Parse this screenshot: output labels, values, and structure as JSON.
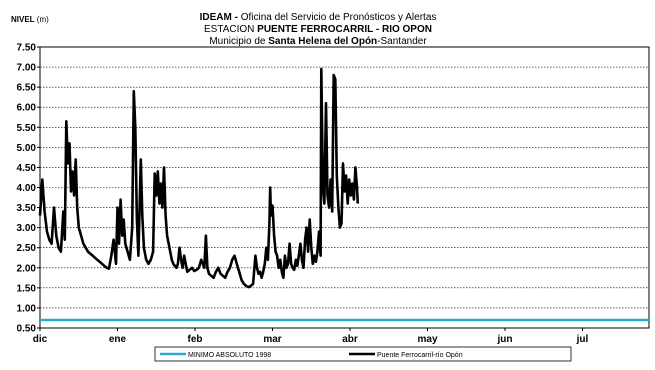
{
  "chart_data": {
    "type": "line",
    "title_line1_bold": "IDEAM -",
    "title_line1_rest": " Oficina del Servicio de Pronósticos y Alertas",
    "title_line2_prefix": "ESTACION ",
    "title_line2_bold": "PUENTE FERROCARRIL - RIO OPON",
    "title_line3_prefix": "Municipio de ",
    "title_line3_bold": "Santa Helena del Opón",
    "title_line3_suffix": "-Santander",
    "ylabel_bold": "NIVEL",
    "ylabel_unit": " (m)",
    "ylim": [
      0.5,
      7.5
    ],
    "y_ticks": [
      "0.50",
      "1.00",
      "1.50",
      "2.00",
      "2.50",
      "3.00",
      "3.50",
      "4.00",
      "4.50",
      "5.00",
      "5.50",
      "6.00",
      "6.50",
      "7.00",
      "7.50"
    ],
    "x_ticks": [
      "dic",
      "ene",
      "feb",
      "mar",
      "abr",
      "may",
      "jun",
      "jul"
    ],
    "grid": true,
    "legend_position": "bottom",
    "series": [
      {
        "name": "MINIMO ABSOLUTO 1998",
        "color": "#2aa9d2",
        "values": [
          [
            0.0,
            0.7
          ],
          [
            7.8,
            0.7
          ]
        ]
      },
      {
        "name": "Puente Ferrocarril-río Opón",
        "color": "#000000",
        "values": [
          [
            0.0,
            3.3
          ],
          [
            0.03,
            4.2
          ],
          [
            0.06,
            3.4
          ],
          [
            0.09,
            2.9
          ],
          [
            0.12,
            2.7
          ],
          [
            0.15,
            2.6
          ],
          [
            0.18,
            3.5
          ],
          [
            0.21,
            2.8
          ],
          [
            0.24,
            2.5
          ],
          [
            0.27,
            2.4
          ],
          [
            0.3,
            3.4
          ],
          [
            0.32,
            2.7
          ],
          [
            0.34,
            5.65
          ],
          [
            0.36,
            4.6
          ],
          [
            0.38,
            5.1
          ],
          [
            0.4,
            3.9
          ],
          [
            0.42,
            4.4
          ],
          [
            0.44,
            3.8
          ],
          [
            0.46,
            4.7
          ],
          [
            0.48,
            3.5
          ],
          [
            0.5,
            3.0
          ],
          [
            0.53,
            2.8
          ],
          [
            0.56,
            2.6
          ],
          [
            0.59,
            2.5
          ],
          [
            0.62,
            2.4
          ],
          [
            0.65,
            2.35
          ],
          [
            0.68,
            2.3
          ],
          [
            0.71,
            2.25
          ],
          [
            0.74,
            2.2
          ],
          [
            0.77,
            2.15
          ],
          [
            0.8,
            2.1
          ],
          [
            0.83,
            2.05
          ],
          [
            0.86,
            2.0
          ],
          [
            0.89,
            1.98
          ],
          [
            0.92,
            2.3
          ],
          [
            0.95,
            2.7
          ],
          [
            0.98,
            2.1
          ],
          [
            1.0,
            3.5
          ],
          [
            1.02,
            2.6
          ],
          [
            1.04,
            3.7
          ],
          [
            1.06,
            2.8
          ],
          [
            1.08,
            3.2
          ],
          [
            1.1,
            2.6
          ],
          [
            1.13,
            2.4
          ],
          [
            1.16,
            2.2
          ],
          [
            1.19,
            3.0
          ],
          [
            1.21,
            6.4
          ],
          [
            1.23,
            5.5
          ],
          [
            1.25,
            3.2
          ],
          [
            1.27,
            2.3
          ],
          [
            1.3,
            4.7
          ],
          [
            1.32,
            3.3
          ],
          [
            1.34,
            2.5
          ],
          [
            1.37,
            2.2
          ],
          [
            1.4,
            2.1
          ],
          [
            1.43,
            2.2
          ],
          [
            1.46,
            2.4
          ],
          [
            1.48,
            4.35
          ],
          [
            1.5,
            3.8
          ],
          [
            1.52,
            4.4
          ],
          [
            1.54,
            3.6
          ],
          [
            1.56,
            4.1
          ],
          [
            1.58,
            3.5
          ],
          [
            1.6,
            4.5
          ],
          [
            1.62,
            3.3
          ],
          [
            1.64,
            2.8
          ],
          [
            1.66,
            2.6
          ],
          [
            1.68,
            2.4
          ],
          [
            1.7,
            2.2
          ],
          [
            1.72,
            2.1
          ],
          [
            1.74,
            2.05
          ],
          [
            1.76,
            2.0
          ],
          [
            1.78,
            2.1
          ],
          [
            1.8,
            2.5
          ],
          [
            1.82,
            2.2
          ],
          [
            1.84,
            2.0
          ],
          [
            1.86,
            2.3
          ],
          [
            1.88,
            2.1
          ],
          [
            1.9,
            1.9
          ],
          [
            1.93,
            1.95
          ],
          [
            1.96,
            2.0
          ],
          [
            1.99,
            1.92
          ],
          [
            2.02,
            1.95
          ],
          [
            2.05,
            2.0
          ],
          [
            2.08,
            2.2
          ],
          [
            2.1,
            2.1
          ],
          [
            2.12,
            2.0
          ],
          [
            2.14,
            2.8
          ],
          [
            2.16,
            2.0
          ],
          [
            2.18,
            1.85
          ],
          [
            2.21,
            1.8
          ],
          [
            2.24,
            1.75
          ],
          [
            2.27,
            1.9
          ],
          [
            2.3,
            2.0
          ],
          [
            2.33,
            1.85
          ],
          [
            2.36,
            1.8
          ],
          [
            2.39,
            1.75
          ],
          [
            2.42,
            1.9
          ],
          [
            2.45,
            2.0
          ],
          [
            2.48,
            2.2
          ],
          [
            2.51,
            2.3
          ],
          [
            2.54,
            2.1
          ],
          [
            2.57,
            1.9
          ],
          [
            2.6,
            1.7
          ],
          [
            2.63,
            1.6
          ],
          [
            2.66,
            1.55
          ],
          [
            2.69,
            1.52
          ],
          [
            2.72,
            1.55
          ],
          [
            2.75,
            1.6
          ],
          [
            2.78,
            2.3
          ],
          [
            2.8,
            2.0
          ],
          [
            2.82,
            1.85
          ],
          [
            2.84,
            1.9
          ],
          [
            2.86,
            1.75
          ],
          [
            2.88,
            1.9
          ],
          [
            2.9,
            2.1
          ],
          [
            2.92,
            2.5
          ],
          [
            2.94,
            2.2
          ],
          [
            2.96,
            3.1
          ],
          [
            2.97,
            4.0
          ],
          [
            2.98,
            3.3
          ],
          [
            3.0,
            3.55
          ],
          [
            3.02,
            2.8
          ],
          [
            3.04,
            2.4
          ],
          [
            3.06,
            2.3
          ],
          [
            3.08,
            2.0
          ],
          [
            3.1,
            2.2
          ],
          [
            3.12,
            1.9
          ],
          [
            3.14,
            1.75
          ],
          [
            3.16,
            2.3
          ],
          [
            3.18,
            2.0
          ],
          [
            3.2,
            2.1
          ],
          [
            3.22,
            2.6
          ],
          [
            3.24,
            2.1
          ],
          [
            3.26,
            2.0
          ],
          [
            3.28,
            1.95
          ],
          [
            3.3,
            2.2
          ],
          [
            3.32,
            2.05
          ],
          [
            3.34,
            2.3
          ],
          [
            3.36,
            2.6
          ],
          [
            3.38,
            2.2
          ],
          [
            3.4,
            2.0
          ],
          [
            3.42,
            2.7
          ],
          [
            3.44,
            3.0
          ],
          [
            3.46,
            2.4
          ],
          [
            3.48,
            3.2
          ],
          [
            3.5,
            2.5
          ],
          [
            3.52,
            2.1
          ],
          [
            3.54,
            2.3
          ],
          [
            3.56,
            2.15
          ],
          [
            3.58,
            2.4
          ],
          [
            3.6,
            2.9
          ],
          [
            3.62,
            2.3
          ],
          [
            3.63,
            6.95
          ],
          [
            3.65,
            4.0
          ],
          [
            3.67,
            3.6
          ],
          [
            3.69,
            6.1
          ],
          [
            3.71,
            3.8
          ],
          [
            3.73,
            3.5
          ],
          [
            3.75,
            4.2
          ],
          [
            3.77,
            3.4
          ],
          [
            3.79,
            6.8
          ],
          [
            3.81,
            6.7
          ],
          [
            3.83,
            4.3
          ],
          [
            3.85,
            3.5
          ],
          [
            3.87,
            3.0
          ],
          [
            3.89,
            3.1
          ],
          [
            3.91,
            4.6
          ],
          [
            3.93,
            3.9
          ],
          [
            3.95,
            4.3
          ],
          [
            3.97,
            3.6
          ],
          [
            3.99,
            4.2
          ],
          [
            4.01,
            3.8
          ],
          [
            4.03,
            4.1
          ],
          [
            4.05,
            3.7
          ],
          [
            4.07,
            4.5
          ],
          [
            4.09,
            4.0
          ],
          [
            4.1,
            3.6
          ]
        ]
      }
    ]
  }
}
